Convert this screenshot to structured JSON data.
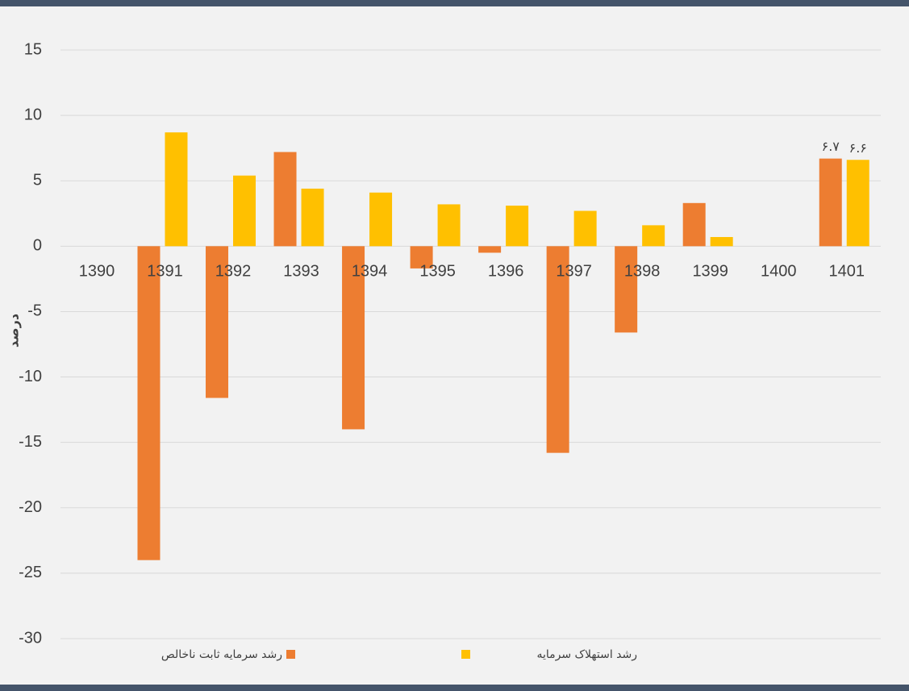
{
  "chart_data": {
    "type": "bar",
    "y_label": "درصد",
    "categories": [
      "1390",
      "1391",
      "1392",
      "1393",
      "1394",
      "1395",
      "1396",
      "1397",
      "1398",
      "1399",
      "1400",
      "1401"
    ],
    "series": [
      {
        "name": "رشد سرمایه ثابت ناخالص",
        "color": "#ed7d31",
        "values": [
          null,
          -24,
          -11.6,
          7.2,
          -14,
          -1.7,
          -0.5,
          -15.8,
          -6.6,
          3.3,
          null,
          6.7
        ],
        "value_labels": [
          null,
          null,
          null,
          null,
          null,
          null,
          null,
          null,
          null,
          null,
          null,
          "۶.۷"
        ]
      },
      {
        "name": "رشد استهلاک سرمایه",
        "color": "#ffc000",
        "values": [
          null,
          8.7,
          5.4,
          4.4,
          4.1,
          3.2,
          3.1,
          2.7,
          1.6,
          0.7,
          null,
          6.6
        ],
        "value_labels": [
          null,
          null,
          null,
          null,
          null,
          null,
          null,
          null,
          null,
          null,
          null,
          "۶.۶"
        ]
      }
    ],
    "ylim": [
      -30,
      15
    ],
    "yticks": [
      -30,
      -25,
      -20,
      -15,
      -10,
      -5,
      0,
      5,
      10,
      15
    ],
    "grid": true
  }
}
